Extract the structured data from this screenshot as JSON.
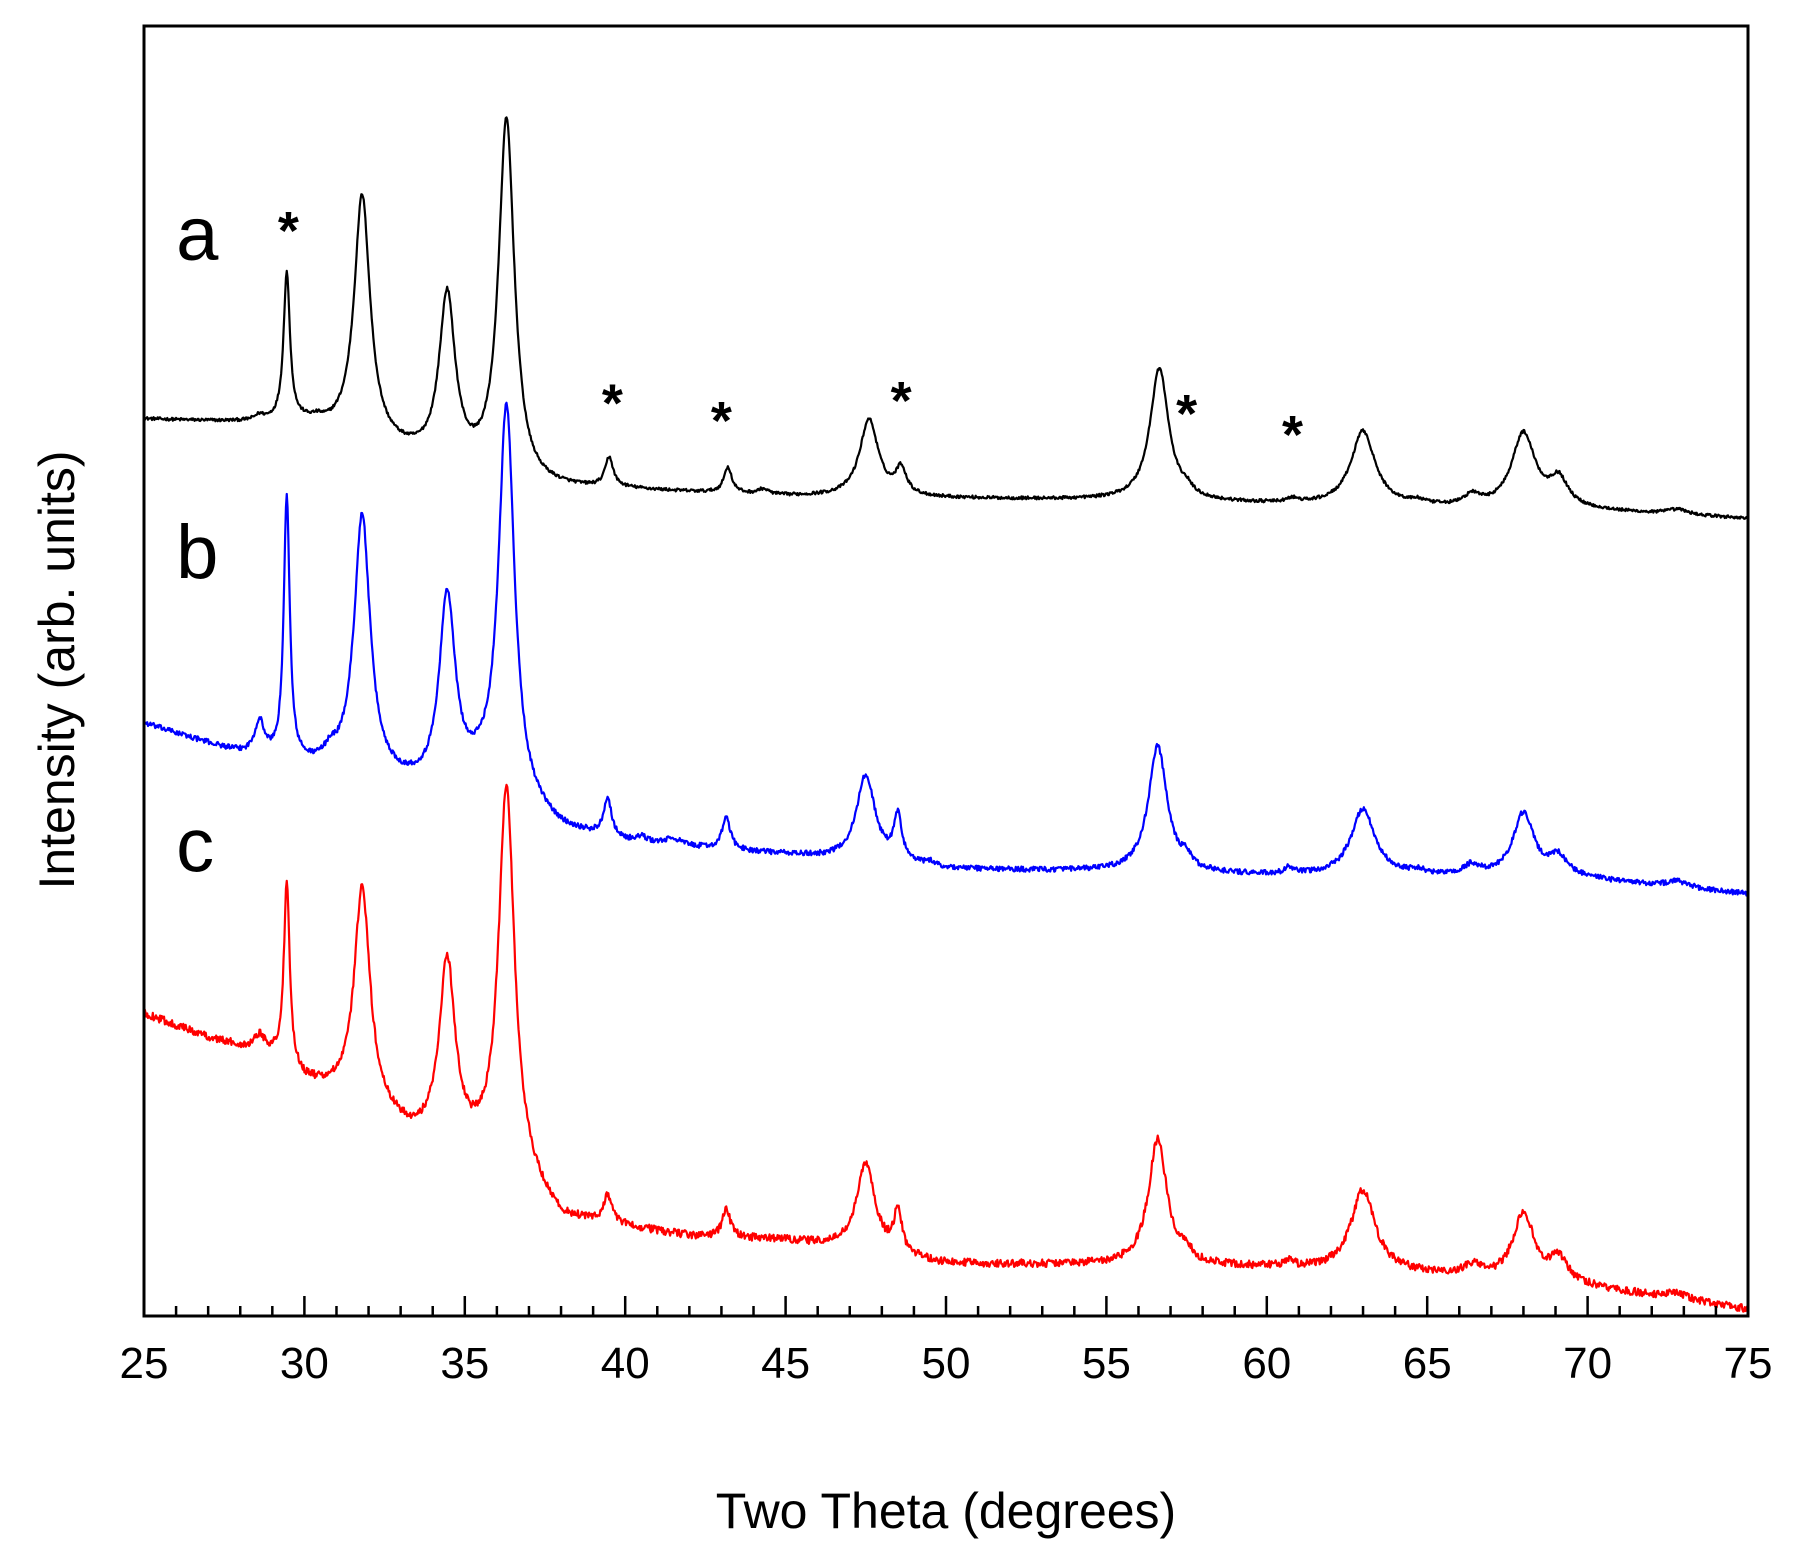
{
  "chart_data": {
    "type": "line",
    "title": "",
    "xlabel": "Two Theta (degrees)",
    "ylabel": "Intensity (arb. units)",
    "xlim": [
      25,
      75
    ],
    "ylim": [
      0,
      1
    ],
    "x_ticks": [
      "25",
      "30",
      "35",
      "40",
      "45",
      "50",
      "55",
      "60",
      "65",
      "70",
      "75"
    ],
    "x_minor_step": 1,
    "y_ticks": [],
    "grid": false,
    "series": [
      {
        "name": "a",
        "label": "a",
        "color": "#000000",
        "baseline": [
          [
            25,
            0.695
          ],
          [
            30,
            0.69
          ],
          [
            34,
            0.66
          ],
          [
            37,
            0.64
          ],
          [
            40,
            0.64
          ],
          [
            45,
            0.635
          ],
          [
            55,
            0.632
          ],
          [
            60,
            0.629
          ],
          [
            65,
            0.626
          ],
          [
            70,
            0.624
          ],
          [
            75,
            0.618
          ]
        ],
        "peaks": [
          {
            "x": 28.6,
            "h": 0.004,
            "w": 0.18
          },
          {
            "x": 29.45,
            "h": 0.115,
            "w": 0.12
          },
          {
            "x": 30.4,
            "h": 0.003,
            "w": 0.2
          },
          {
            "x": 31.8,
            "h": 0.19,
            "w": 0.3
          },
          {
            "x": 34.45,
            "h": 0.13,
            "w": 0.3
          },
          {
            "x": 36.3,
            "h": 0.28,
            "w": 0.3
          },
          {
            "x": 39.5,
            "h": 0.023,
            "w": 0.15
          },
          {
            "x": 43.2,
            "h": 0.02,
            "w": 0.15
          },
          {
            "x": 44.3,
            "h": 0.004,
            "w": 0.2
          },
          {
            "x": 47.6,
            "h": 0.06,
            "w": 0.35
          },
          {
            "x": 48.6,
            "h": 0.02,
            "w": 0.2
          },
          {
            "x": 56.65,
            "h": 0.103,
            "w": 0.35
          },
          {
            "x": 57.5,
            "h": 0.005,
            "w": 0.2
          },
          {
            "x": 60.8,
            "h": 0.003,
            "w": 0.2
          },
          {
            "x": 63.0,
            "h": 0.058,
            "w": 0.45
          },
          {
            "x": 64.7,
            "h": 0.003,
            "w": 0.3
          },
          {
            "x": 66.4,
            "h": 0.008,
            "w": 0.3
          },
          {
            "x": 68.0,
            "h": 0.058,
            "w": 0.45
          },
          {
            "x": 69.1,
            "h": 0.021,
            "w": 0.35
          },
          {
            "x": 72.8,
            "h": 0.004,
            "w": 0.4
          }
        ],
        "noise": 0.0012
      },
      {
        "name": "b",
        "label": "b",
        "color": "#0000ff",
        "baseline": [
          [
            25,
            0.459
          ],
          [
            28,
            0.435
          ],
          [
            30,
            0.425
          ],
          [
            31.5,
            0.42
          ],
          [
            33,
            0.41
          ],
          [
            34,
            0.405
          ],
          [
            35.5,
            0.41
          ],
          [
            37,
            0.388
          ],
          [
            38,
            0.375
          ],
          [
            40,
            0.366
          ],
          [
            45,
            0.357
          ],
          [
            50,
            0.346
          ],
          [
            55,
            0.344
          ],
          [
            60,
            0.341
          ],
          [
            65,
            0.34
          ],
          [
            70,
            0.338
          ],
          [
            75,
            0.327
          ]
        ],
        "peaks": [
          {
            "x": 28.6,
            "h": 0.026,
            "w": 0.18
          },
          {
            "x": 29.45,
            "h": 0.205,
            "w": 0.11
          },
          {
            "x": 30.8,
            "h": 0.008,
            "w": 0.2
          },
          {
            "x": 31.8,
            "h": 0.2,
            "w": 0.3
          },
          {
            "x": 34.45,
            "h": 0.147,
            "w": 0.3
          },
          {
            "x": 36.3,
            "h": 0.305,
            "w": 0.3
          },
          {
            "x": 39.45,
            "h": 0.03,
            "w": 0.15
          },
          {
            "x": 40.5,
            "h": 0.004,
            "w": 0.2
          },
          {
            "x": 41.5,
            "h": 0.005,
            "w": 0.3
          },
          {
            "x": 43.15,
            "h": 0.025,
            "w": 0.15
          },
          {
            "x": 47.5,
            "h": 0.067,
            "w": 0.35
          },
          {
            "x": 48.5,
            "h": 0.035,
            "w": 0.15
          },
          {
            "x": 49.5,
            "h": 0.003,
            "w": 0.2
          },
          {
            "x": 56.6,
            "h": 0.098,
            "w": 0.35
          },
          {
            "x": 57.5,
            "h": 0.008,
            "w": 0.18
          },
          {
            "x": 60.7,
            "h": 0.005,
            "w": 0.15
          },
          {
            "x": 63.0,
            "h": 0.052,
            "w": 0.45
          },
          {
            "x": 64.7,
            "h": 0.003,
            "w": 0.3
          },
          {
            "x": 66.4,
            "h": 0.008,
            "w": 0.3
          },
          {
            "x": 68.0,
            "h": 0.05,
            "w": 0.4
          },
          {
            "x": 69.1,
            "h": 0.015,
            "w": 0.35
          },
          {
            "x": 72.8,
            "h": 0.005,
            "w": 0.4
          }
        ],
        "noise": 0.002
      },
      {
        "name": "c",
        "label": "c",
        "color": "#ff0000",
        "baseline": [
          [
            25,
            0.234
          ],
          [
            27,
            0.215
          ],
          [
            29,
            0.2
          ],
          [
            30,
            0.18
          ],
          [
            31,
            0.17
          ],
          [
            32.5,
            0.15
          ],
          [
            33.5,
            0.135
          ],
          [
            34.5,
            0.13
          ],
          [
            35.5,
            0.12
          ],
          [
            37,
            0.098
          ],
          [
            38,
            0.073
          ],
          [
            40,
            0.068
          ],
          [
            42,
            0.061
          ],
          [
            45,
            0.058
          ],
          [
            50,
            0.04
          ],
          [
            55,
            0.039
          ],
          [
            60,
            0.037
          ],
          [
            65,
            0.032
          ],
          [
            70,
            0.022
          ],
          [
            75,
            0.005
          ]
        ],
        "peaks": [
          {
            "x": 28.6,
            "h": 0.012,
            "w": 0.2
          },
          {
            "x": 29.45,
            "h": 0.14,
            "w": 0.11
          },
          {
            "x": 31.8,
            "h": 0.17,
            "w": 0.3
          },
          {
            "x": 34.45,
            "h": 0.14,
            "w": 0.3
          },
          {
            "x": 36.3,
            "h": 0.3,
            "w": 0.3
          },
          {
            "x": 39.45,
            "h": 0.022,
            "w": 0.15
          },
          {
            "x": 43.15,
            "h": 0.022,
            "w": 0.15
          },
          {
            "x": 47.5,
            "h": 0.068,
            "w": 0.35
          },
          {
            "x": 48.5,
            "h": 0.032,
            "w": 0.15
          },
          {
            "x": 56.6,
            "h": 0.098,
            "w": 0.35
          },
          {
            "x": 57.5,
            "h": 0.008,
            "w": 0.18
          },
          {
            "x": 60.7,
            "h": 0.005,
            "w": 0.15
          },
          {
            "x": 63.0,
            "h": 0.063,
            "w": 0.45
          },
          {
            "x": 66.4,
            "h": 0.008,
            "w": 0.3
          },
          {
            "x": 68.0,
            "h": 0.053,
            "w": 0.4
          },
          {
            "x": 69.1,
            "h": 0.018,
            "w": 0.35
          },
          {
            "x": 72.8,
            "h": 0.005,
            "w": 0.4
          }
        ],
        "noise": 0.003
      }
    ],
    "annotations": [
      {
        "text": "*",
        "series": "a",
        "x": 29.5
      },
      {
        "text": "*",
        "series": "a",
        "x": 39.6
      },
      {
        "text": "*",
        "series": "a",
        "x": 43.0
      },
      {
        "text": "*",
        "series": "a",
        "x": 48.6
      },
      {
        "text": "*",
        "series": "a",
        "x": 57.5
      },
      {
        "text": "*",
        "series": "a",
        "x": 60.8
      }
    ]
  }
}
